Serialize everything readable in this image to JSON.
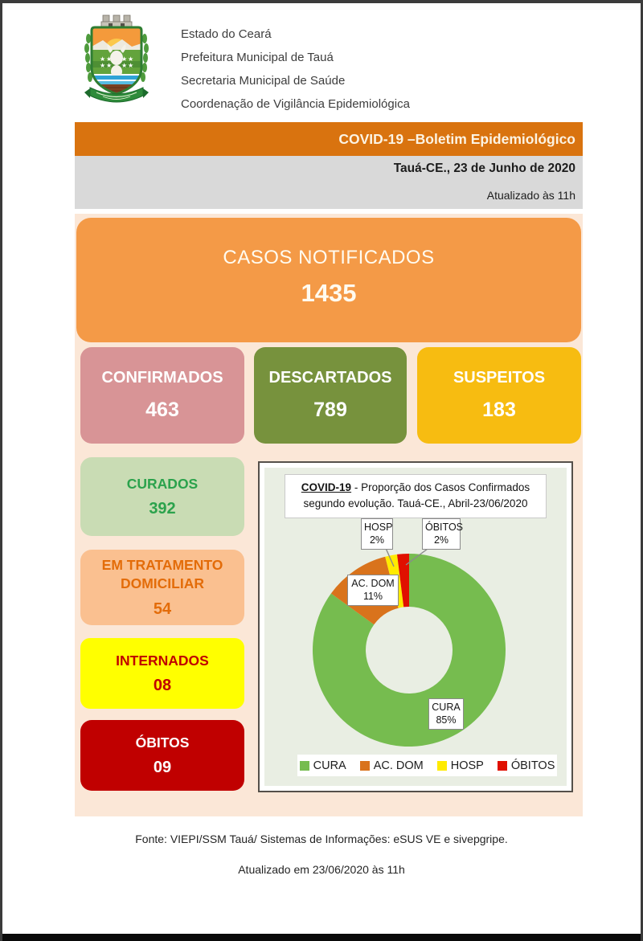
{
  "header": {
    "org_lines": [
      "Estado do Ceará",
      "Prefeitura Municipal de Tauá",
      "Secretaria Municipal de Saúde",
      "Coordenação de Vigilância Epidemiológica"
    ]
  },
  "banner": {
    "title": "COVID-19 –Boletim Epidemiológico"
  },
  "info": {
    "date": "Tauá-CE., 23 de Junho de 2020",
    "updated": "Atualizado às 11h"
  },
  "cards": {
    "notificados": {
      "label": "CASOS NOTIFICADOS",
      "value": "1435"
    },
    "confirmados": {
      "label": "CONFIRMADOS",
      "value": "463"
    },
    "descartados": {
      "label": "DESCARTADOS",
      "value": "789"
    },
    "suspeitos": {
      "label": "SUSPEITOS",
      "value": "183"
    },
    "curados": {
      "label": "CURADOS",
      "value": "392"
    },
    "em_tratamento": {
      "label": "EM TRATAMENTO DOMICILIAR",
      "value": "54"
    },
    "internados": {
      "label": "INTERNADOS",
      "value": "08"
    },
    "obitos": {
      "label": "ÓBITOS",
      "value": "09"
    }
  },
  "chart_data": {
    "type": "pie",
    "subtype": "donut",
    "title_strong": "COVID-19",
    "title_rest": " - Proporção dos Casos Confirmados segundo evolução. Tauá-CE., Abril-23/06/2020",
    "categories": [
      "CURA",
      "AC. DOM",
      "HOSP",
      "ÓBITOS"
    ],
    "values": [
      85,
      11,
      2,
      2
    ],
    "unit": "%",
    "colors": [
      "#76BC4F",
      "#D9731C",
      "#FFEB00",
      "#E01000"
    ],
    "legend_position": "bottom",
    "start_angle_deg": 0,
    "direction": "clockwise",
    "callouts": [
      {
        "label": "HOSP",
        "pct": "2%"
      },
      {
        "label": "ÓBITOS",
        "pct": "2%"
      },
      {
        "label": "AC. DOM",
        "pct": "11%"
      },
      {
        "label": "CURA",
        "pct": "85%"
      }
    ]
  },
  "footer": {
    "source": "Fonte: VIEPI/SSM Tauá/ Sistemas de Informações: eSUS VE e sivepgripe.",
    "updated": "Atualizado em 23/06/2020 às 11h"
  },
  "colors": {
    "banner_orange": "#D9730F",
    "info_gray": "#D9D9D9",
    "panel_peach": "#FBE7D7",
    "notificados_orange": "#F49A47",
    "confirmados_pink": "#D89496",
    "descartados_olive": "#77923D",
    "suspeitos_amber": "#F7BC11",
    "curados_bg": "#C9DCB4",
    "curados_text": "#2BA24C",
    "tratamento_bg": "#FAC090",
    "tratamento_text": "#E36C09",
    "internados_bg": "#FFFF00",
    "alert_red": "#C00000",
    "chart_panel_bg": "#E9EEE3"
  }
}
